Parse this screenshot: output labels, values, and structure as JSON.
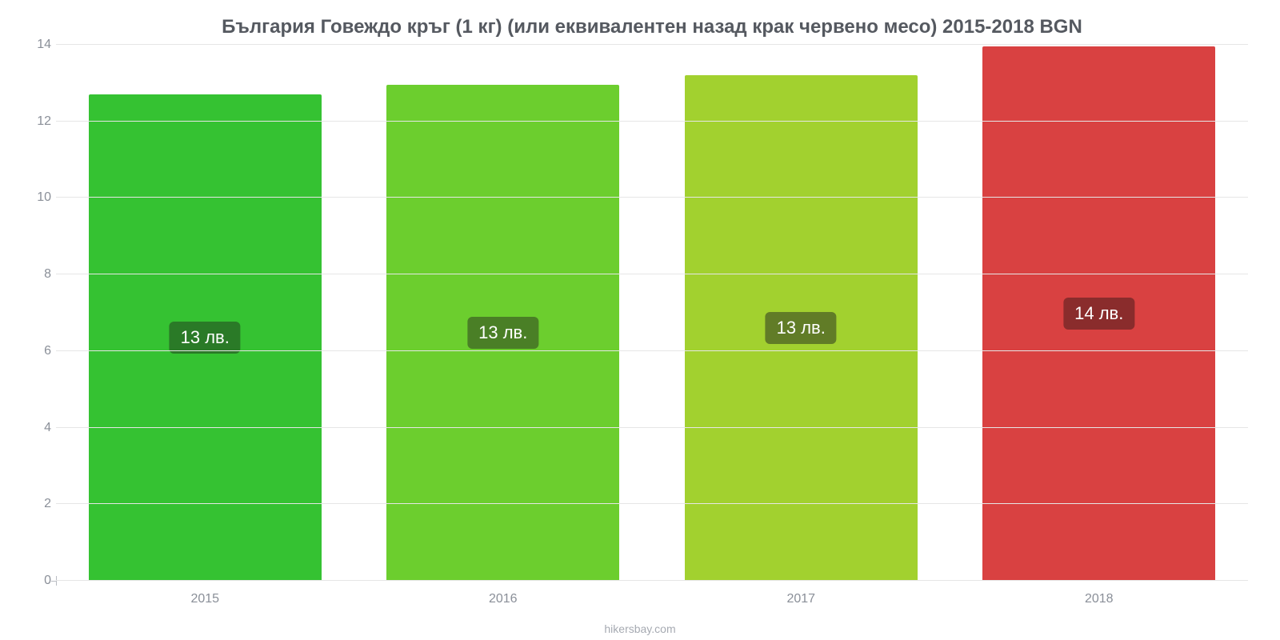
{
  "chart": {
    "type": "bar",
    "title": "България Говеждо кръг (1 кг) (или еквивалентен назад крак червено месо) 2015-2018 BGN",
    "title_fontsize": 24,
    "title_color": "#555960",
    "background_color": "#ffffff",
    "grid_color": "#e6e6e6",
    "axis_label_color": "#8a8f98",
    "axis_label_fontsize": 16,
    "footer": "hikersbay.com",
    "footer_fontsize": 14,
    "footer_color": "#a6aab2",
    "ylim": [
      0,
      14
    ],
    "yticks": [
      0,
      2,
      4,
      6,
      8,
      10,
      12,
      14
    ],
    "categories": [
      "2015",
      "2016",
      "2017",
      "2018"
    ],
    "values": [
      12.7,
      12.95,
      13.2,
      13.95
    ],
    "bar_labels": [
      "13 лв.",
      "13 лв.",
      "13 лв.",
      "14 лв."
    ],
    "bar_colors": [
      "#35c232",
      "#6cce2e",
      "#a2d12f",
      "#d94141"
    ],
    "badge_colors": [
      "#2a7a27",
      "#4a7f26",
      "#617c27",
      "#8a2c2c"
    ],
    "badge_fontsize": 22,
    "bar_width_ratio": 0.78
  }
}
